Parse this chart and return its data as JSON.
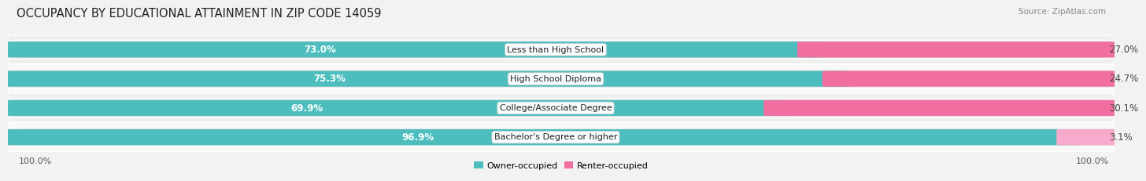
{
  "title": "OCCUPANCY BY EDUCATIONAL ATTAINMENT IN ZIP CODE 14059",
  "source": "Source: ZipAtlas.com",
  "categories": [
    "Less than High School",
    "High School Diploma",
    "College/Associate Degree",
    "Bachelor's Degree or higher"
  ],
  "owner_pct": [
    73.0,
    75.3,
    69.9,
    96.9
  ],
  "renter_pct": [
    27.0,
    24.7,
    30.1,
    3.1
  ],
  "owner_color": "#4DBDBD",
  "renter_color": "#F06EA0",
  "renter_color_light": "#F8AACC",
  "track_color": "#E0E0E0",
  "row_bg_even": "#EFEFEF",
  "row_bg_odd": "#F8F8F8",
  "sep_color": "#FFFFFF",
  "owner_label": "Owner-occupied",
  "renter_label": "Renter-occupied",
  "axis_label_left": "100.0%",
  "axis_label_right": "100.0%",
  "title_fontsize": 10.5,
  "source_fontsize": 7.5,
  "label_fontsize": 8.0,
  "bar_label_fontsize": 8.5,
  "cat_fontsize": 8.0,
  "fig_bg": "#F2F2F2"
}
